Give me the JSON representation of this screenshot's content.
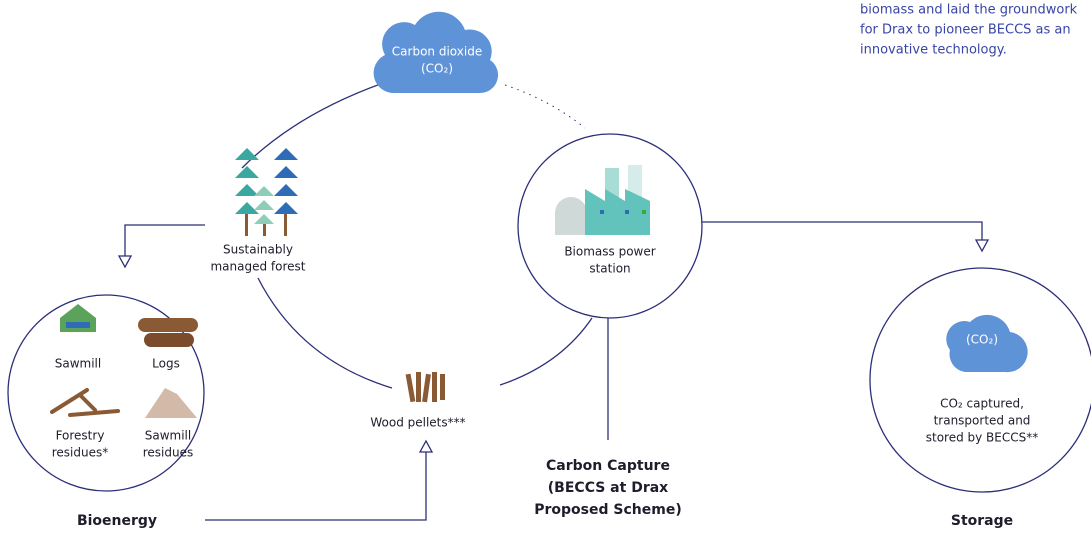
{
  "intro": {
    "lines": [
      "biomass and laid the groundwork",
      "for Drax to pioneer BECCS as an",
      "innovative technology."
    ]
  },
  "nodes": {
    "cloud": {
      "lines": [
        "Carbon dioxide",
        "(CO₂)"
      ]
    },
    "forest": {
      "lines": [
        "Sustainably",
        "managed forest"
      ]
    },
    "power": {
      "lines": [
        "Biomass power",
        "station"
      ]
    },
    "sawmill": {
      "lines": [
        "Sawmill"
      ]
    },
    "logs": {
      "lines": [
        "Logs"
      ]
    },
    "forestry": {
      "lines": [
        "Forestry",
        "residues*"
      ]
    },
    "residues": {
      "lines": [
        "Sawmill",
        "residues"
      ]
    },
    "pellets": {
      "lines": [
        "Wood pellets***"
      ]
    },
    "capture": {
      "lines": [
        "Carbon Capture",
        "(BECCS at Drax",
        "Proposed Scheme)"
      ]
    },
    "storage_cloud": {
      "lines": [
        "(CO₂)"
      ]
    },
    "stored": {
      "lines": [
        "CO₂ captured,",
        "transported and",
        "stored by BECCS**"
      ]
    }
  },
  "labels": {
    "bioenergy": "Bioenergy",
    "storage": "Storage"
  }
}
